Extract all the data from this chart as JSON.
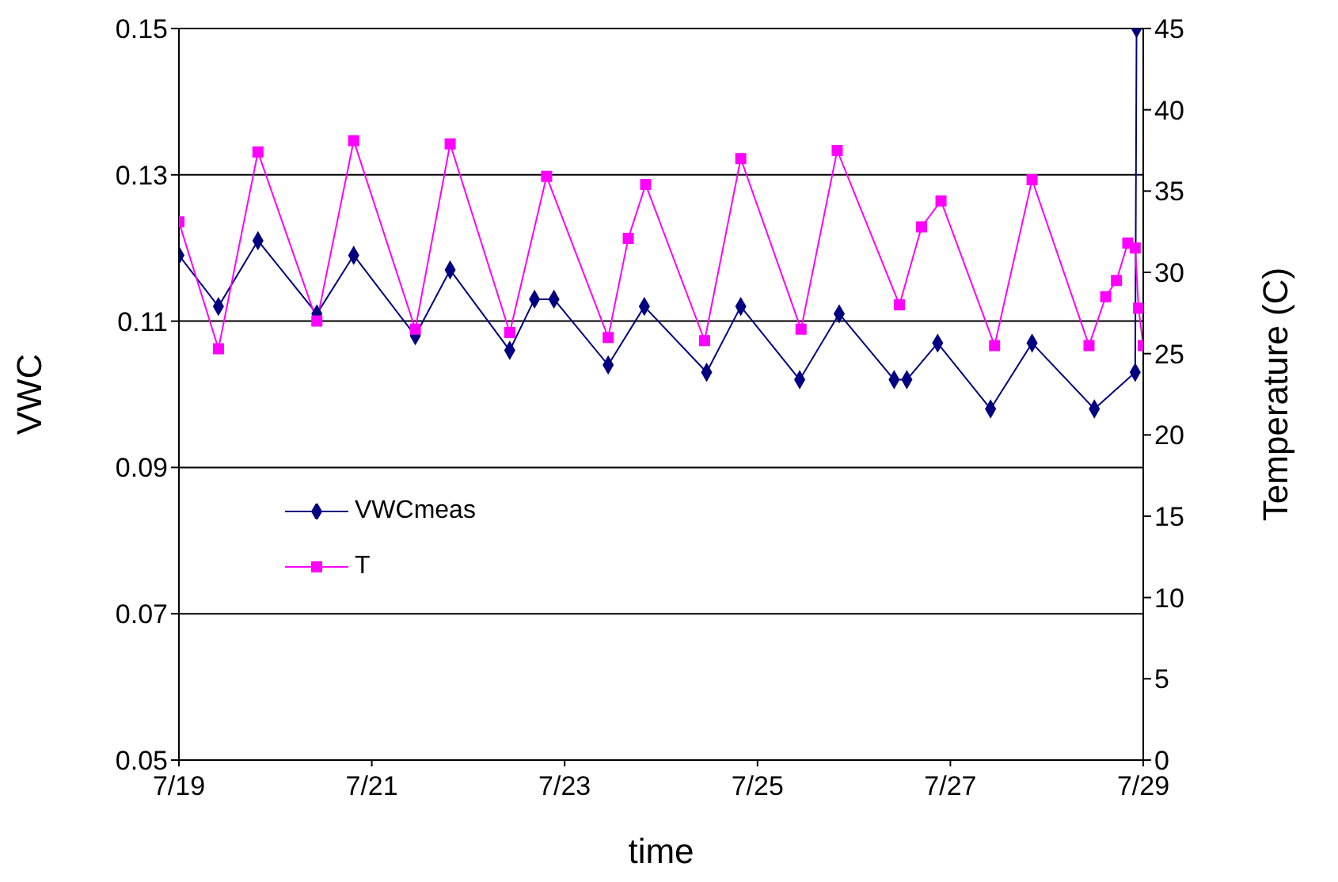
{
  "chart_data": {
    "type": "line",
    "xlabel": "time",
    "ylabel": "VWC",
    "y2label": "Temperature (C)",
    "xlim": [
      "--07-19T00:00",
      "--07-29T00:00"
    ],
    "xticks": [
      {
        "value": "--07-19T00:00",
        "label": "7/19"
      },
      {
        "value": "--07-21T00:00",
        "label": "7/21"
      },
      {
        "value": "--07-23T00:00",
        "label": "7/23"
      },
      {
        "value": "--07-25T00:00",
        "label": "7/25"
      },
      {
        "value": "--07-27T00:00",
        "label": "7/27"
      },
      {
        "value": "--07-29T00:00",
        "label": "7/29"
      }
    ],
    "ylim": [
      0.05,
      0.15
    ],
    "yticks": [
      0.05,
      0.07,
      0.09,
      0.11,
      0.13,
      0.15
    ],
    "y2lim": [
      0,
      45
    ],
    "y2ticks": [
      0,
      5,
      10,
      15,
      20,
      25,
      30,
      35,
      40,
      45
    ],
    "grid": "y",
    "legend": "left",
    "line_style": "solid",
    "series": [
      {
        "name": "VWCmeas",
        "color": "#000080",
        "marker": "diamond",
        "x": [
          "--07-19T00:00",
          "--07-19T09:50",
          "--07-19T19:40",
          "--07-20T10:20",
          "--07-20T19:30",
          "--07-21T10:50",
          "--07-21T19:30",
          "--07-22T10:20",
          "--07-22T16:30",
          "--07-22T21:20",
          "--07-23T10:50",
          "--07-23T19:50",
          "--07-24T11:20",
          "--07-24T19:50",
          "--07-25T10:30",
          "--07-25T20:20",
          "--07-26T10:00",
          "--07-26T13:10",
          "--07-26T20:50",
          "--07-27T10:00",
          "--07-27T20:20",
          "--07-28T11:50",
          "--07-28T22:00",
          "--07-28T22:20"
        ],
        "values": [
          0.119,
          0.112,
          0.121,
          0.111,
          0.119,
          0.108,
          0.117,
          0.106,
          0.113,
          0.113,
          0.104,
          0.112,
          0.103,
          0.112,
          0.102,
          0.111,
          0.102,
          0.102,
          0.107,
          0.098,
          0.107,
          0.098,
          0.103,
          0.15
        ]
      },
      {
        "name": "T",
        "color": "#ff00ff",
        "marker": "square",
        "axis": "y2",
        "x": [
          "--07-19T00:00",
          "--07-19T09:50",
          "--07-19T19:40",
          "--07-20T10:20",
          "--07-20T19:30",
          "--07-21T10:50",
          "--07-21T19:30",
          "--07-22T10:20",
          "--07-22T19:30",
          "--07-23T10:50",
          "--07-23T15:50",
          "--07-23T20:10",
          "--07-24T10:50",
          "--07-24T19:50",
          "--07-25T10:50",
          "--07-25T19:50",
          "--07-26T11:20",
          "--07-26T16:50",
          "--07-26T21:40",
          "--07-27T11:00",
          "--07-27T20:20",
          "--07-28T10:30",
          "--07-28T14:40",
          "--07-28T17:20",
          "--07-28T20:10",
          "--07-28T22:00",
          "--07-28T22:50",
          "--07-29T00:00"
        ],
        "values": [
          33.1,
          25.3,
          37.4,
          27.0,
          38.1,
          26.5,
          37.9,
          26.3,
          35.9,
          26.0,
          32.1,
          35.4,
          25.8,
          37.0,
          26.5,
          37.5,
          28.0,
          32.8,
          34.4,
          25.5,
          35.7,
          25.5,
          28.5,
          29.5,
          31.8,
          31.5,
          27.8,
          25.5
        ]
      }
    ]
  }
}
